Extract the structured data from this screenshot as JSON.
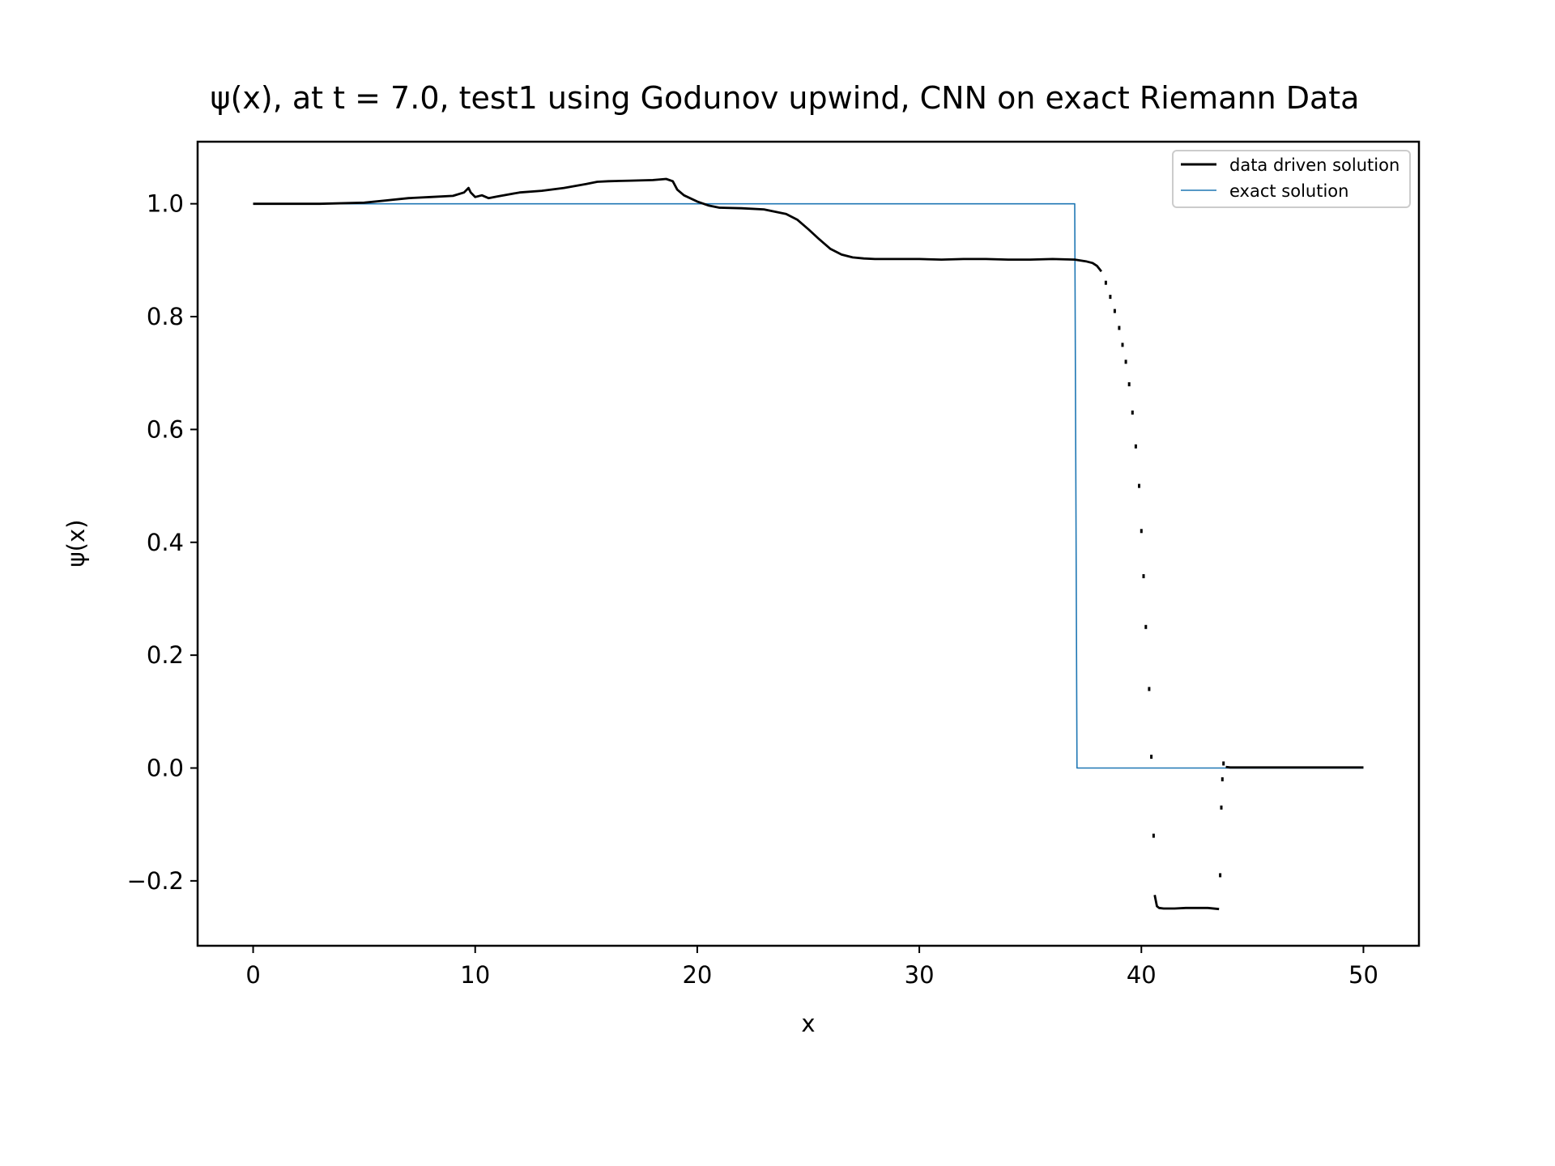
{
  "chart_data": {
    "type": "line",
    "title": "ψ(x), at t = 7.0, test1 using Godunov upwind, CNN on exact Riemann Data",
    "xlabel": "x",
    "ylabel": "ψ(x)",
    "xlim": [
      -2.5,
      52.5
    ],
    "ylim": [
      -0.315,
      1.11
    ],
    "xticks": [
      0,
      10,
      20,
      30,
      40,
      50
    ],
    "xtick_labels": [
      "0",
      "10",
      "20",
      "30",
      "40",
      "50"
    ],
    "yticks": [
      -0.2,
      0.0,
      0.2,
      0.4,
      0.6,
      0.8,
      1.0
    ],
    "ytick_labels": [
      "−0.2",
      "0.0",
      "0.2",
      "0.4",
      "0.6",
      "0.8",
      "1.0"
    ],
    "grid": false,
    "legend": {
      "position": "top-right"
    },
    "series": [
      {
        "name": "data driven solution",
        "color": "#000000",
        "style": "line",
        "x": [
          0,
          3,
          5,
          6,
          7,
          8,
          9,
          9.5,
          9.7,
          9.8,
          10,
          10.3,
          10.6,
          11,
          12,
          13,
          14,
          15,
          15.5,
          16,
          17,
          18,
          18.6,
          18.9,
          19.1,
          19.4,
          20,
          20.5,
          21,
          22,
          23,
          24,
          24.5,
          25,
          25.5,
          26,
          26.5,
          27,
          27.5,
          28,
          29,
          30,
          31,
          32,
          33,
          34,
          35,
          36,
          37,
          37.5,
          37.8,
          38,
          38.2
        ],
        "y": [
          1.0,
          1.0,
          1.002,
          1.006,
          1.01,
          1.012,
          1.014,
          1.02,
          1.028,
          1.02,
          1.012,
          1.015,
          1.01,
          1.013,
          1.02,
          1.023,
          1.028,
          1.035,
          1.039,
          1.04,
          1.041,
          1.042,
          1.044,
          1.04,
          1.025,
          1.015,
          1.004,
          0.997,
          0.993,
          0.992,
          0.99,
          0.982,
          0.972,
          0.955,
          0.937,
          0.92,
          0.91,
          0.905,
          0.903,
          0.902,
          0.902,
          0.902,
          0.901,
          0.902,
          0.902,
          0.901,
          0.901,
          0.902,
          0.901,
          0.898,
          0.895,
          0.89,
          0.88
        ]
      },
      {
        "name": "",
        "color": "#000000",
        "style": "points",
        "x": [
          38.4,
          38.6,
          38.8,
          39.0,
          39.15,
          39.3,
          39.45,
          39.6,
          39.75,
          39.9,
          40.0,
          40.1,
          40.2,
          40.35,
          40.45,
          40.55
        ],
        "y": [
          0.86,
          0.835,
          0.81,
          0.78,
          0.75,
          0.72,
          0.68,
          0.63,
          0.57,
          0.5,
          0.42,
          0.34,
          0.25,
          0.14,
          0.02,
          -0.12
        ]
      },
      {
        "name": "",
        "color": "#000000",
        "style": "line",
        "x": [
          40.6,
          40.7,
          40.8,
          41.0,
          41.5,
          42.0,
          42.5,
          43.0,
          43.5
        ],
        "y": [
          -0.225,
          -0.245,
          -0.248,
          -0.249,
          -0.249,
          -0.248,
          -0.248,
          -0.248,
          -0.25
        ]
      },
      {
        "name": "",
        "color": "#000000",
        "style": "points",
        "x": [
          43.55,
          43.6,
          43.65,
          43.7
        ],
        "y": [
          -0.19,
          -0.07,
          -0.02,
          0.008
        ]
      },
      {
        "name": "",
        "color": "#000000",
        "style": "line",
        "x": [
          43.8,
          44,
          46,
          48,
          50
        ],
        "y": [
          0.002,
          0.001,
          0.001,
          0.001,
          0.001
        ]
      },
      {
        "name": "exact solution",
        "color": "#1f77b4",
        "style": "line",
        "x": [
          0,
          37.0,
          37.1,
          50
        ],
        "y": [
          1.0,
          1.0,
          0.0,
          0.0
        ]
      }
    ]
  }
}
